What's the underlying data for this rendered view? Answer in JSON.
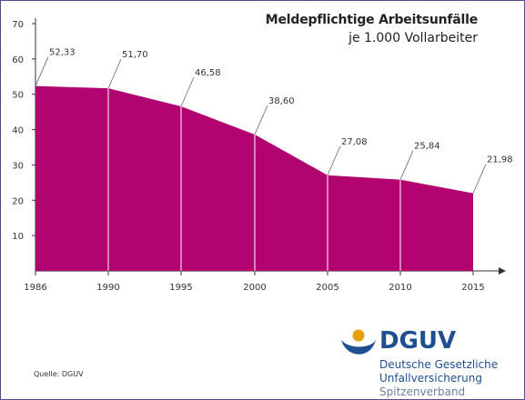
{
  "title": "Meldepflichtige Arbeitsunfälle",
  "subtitle": "je 1.000 Vollarbeiter",
  "source": "Quelle: DGUV",
  "logo": {
    "brand": "DGUV",
    "line1": "Deutsche Gesetzliche",
    "line2": "Unfallversicherung",
    "line3": "Spitzenverband"
  },
  "colors": {
    "fill": "#b10471",
    "logo_blue": "#1d4f91",
    "frame": "#5b4b8a"
  },
  "chart_data": {
    "type": "area",
    "title": "Meldepflichtige Arbeitsunfälle",
    "subtitle": "je 1.000 Vollarbeiter",
    "x": [
      1986,
      1990,
      1995,
      2000,
      2005,
      2010,
      2015
    ],
    "xticklabels": [
      "1986",
      "1990",
      "1995",
      "2000",
      "2005",
      "2010",
      "2015"
    ],
    "values": [
      52.33,
      51.7,
      46.58,
      38.6,
      27.08,
      25.84,
      21.98
    ],
    "data_labels": [
      "52,33",
      "51,70",
      "46,58",
      "38,60",
      "27,08",
      "25,84",
      "21,98"
    ],
    "yticks": [
      10,
      20,
      30,
      40,
      50,
      60,
      70
    ],
    "ylim": [
      0,
      70
    ],
    "grid": false,
    "legend": "none"
  }
}
